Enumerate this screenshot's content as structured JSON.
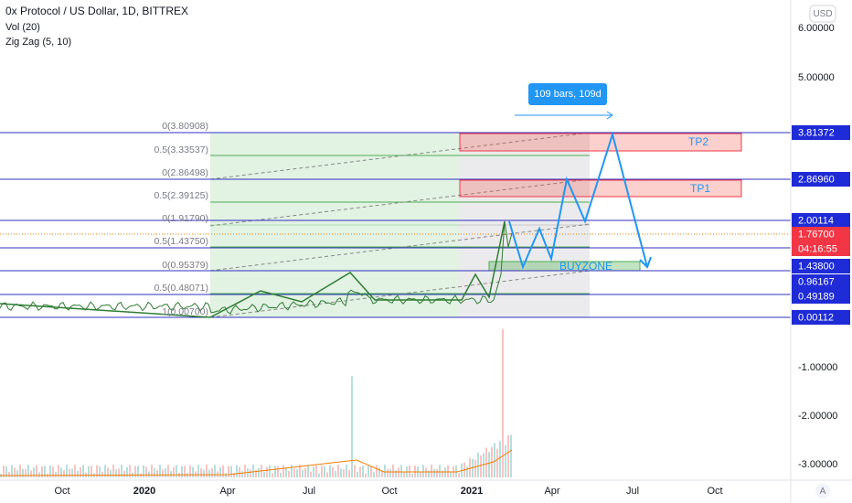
{
  "header": {
    "title": "0x Protocol / US Dollar, 1D, BITTREX",
    "vol": "Vol (20)",
    "zigzag": "Zig Zag (5, 10)"
  },
  "currency": "USD",
  "price_axis": [
    "6.00000",
    "5.00000"
  ],
  "volume_axis": [
    "-1.00000",
    "-2.00000",
    "-3.00000"
  ],
  "price_tags": [
    "3.81372",
    "2.86960",
    "2.00114",
    "1.76700",
    "04:16:55",
    "1.43800",
    "0.96167",
    "0.49189",
    "0.00112"
  ],
  "fib_labels": [
    "0(3.80908)",
    "0.5(3.33537)",
    "0(2.86498)",
    "0.5(2.39125)",
    "0(1.91790)",
    "0.5(1.43750)",
    "0(0.95379)",
    "0.5(0.48071)",
    "1(0.00700)"
  ],
  "annotations": {
    "range": "109 bars, 109d",
    "tp2": "TP2",
    "tp1": "TP1",
    "buyzone": "BUYZONE"
  },
  "time_axis": [
    "Oct",
    "2020",
    "Apr",
    "Jul",
    "Oct",
    "2021",
    "Apr",
    "Jul",
    "Oct"
  ],
  "auto_button": "A"
}
